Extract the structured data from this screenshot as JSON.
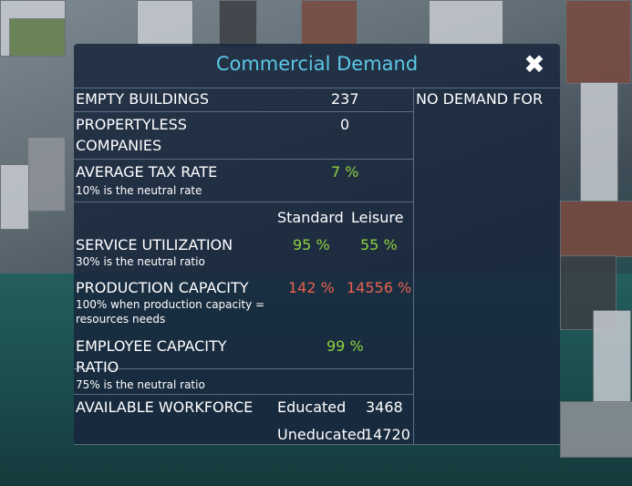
{
  "dialog": {
    "title": "Commercial Demand",
    "close_symbol": "✖"
  },
  "rows": {
    "empty_buildings": {
      "label": "EMPTY BUILDINGS",
      "value": "237"
    },
    "propertyless": {
      "label_line1": "PROPERTYLESS",
      "label_line2": "COMPANIES",
      "value": "0"
    },
    "average_tax": {
      "label": "AVERAGE TAX RATE",
      "sub": "10% is the neutral rate",
      "value": "7 %"
    },
    "columns": {
      "standard": "Standard",
      "leisure": "Leisure"
    },
    "service_utilization": {
      "label": "SERVICE UTILIZATION",
      "sub": "30% is the neutral ratio",
      "standard": "95 %",
      "leisure": "55 %"
    },
    "production_capacity": {
      "label": "PRODUCTION CAPACITY",
      "sub_line1": "100% when production capacity =",
      "sub_line2": "resources needs",
      "standard": "142 %",
      "leisure": "14556 %"
    },
    "employee_capacity": {
      "label_line1": "EMPLOYEE CAPACITY",
      "label_line2": "RATIO",
      "sub": "75% is the neutral ratio",
      "value": "99 %"
    },
    "workforce": {
      "label": "AVAILABLE WORKFORCE",
      "educated_label": "Educated",
      "educated_value": "3468",
      "uneducated_label": "Uneducated",
      "uneducated_value": "14720"
    }
  },
  "right_panel": {
    "header": "NO DEMAND FOR"
  },
  "colors": {
    "title": "#5cc8e6",
    "positive": "#8ed23e",
    "negative": "#e8624e",
    "panel": "#18263c"
  }
}
